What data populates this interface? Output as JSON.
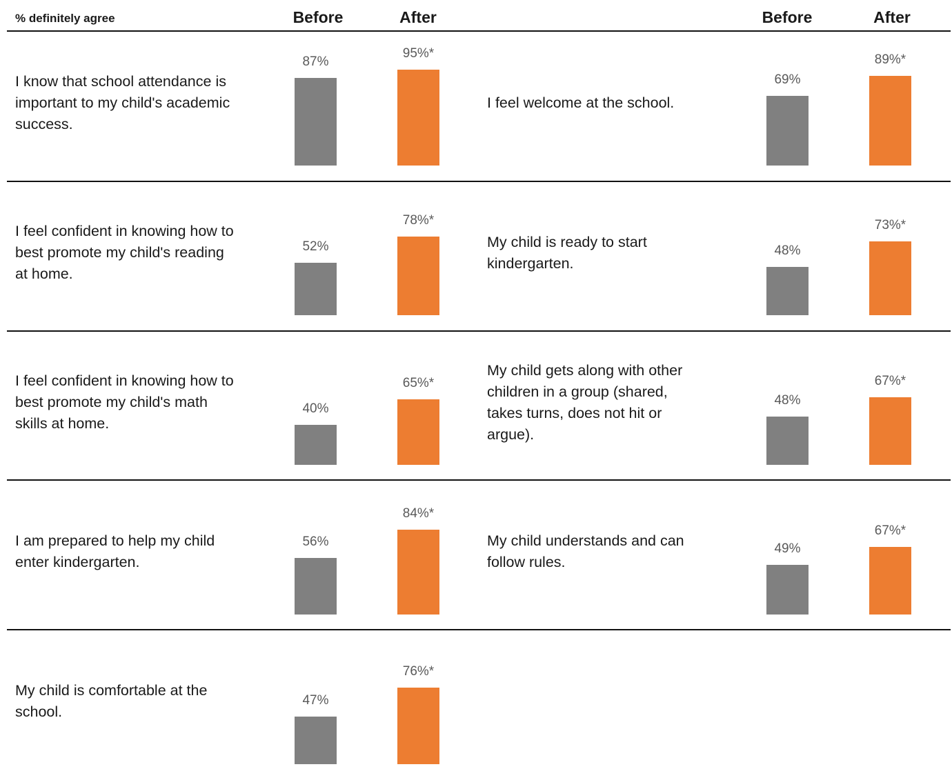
{
  "header": {
    "metric_label": "% definitely agree",
    "before_label": "Before",
    "after_label": "After"
  },
  "colors": {
    "before": "#808080",
    "after": "#ED7D31",
    "value_text": "#595959",
    "rule": "#111111"
  },
  "chart_data": {
    "type": "bar",
    "title": "% definitely agree",
    "categories": [
      "Before",
      "After"
    ],
    "significance_marker": "*",
    "panels": [
      {
        "statement": "I know that school attendance is important to my child's academic success.",
        "before": 87,
        "after": 95,
        "before_label": "87%",
        "after_label": "95%*"
      },
      {
        "statement": "I feel welcome at the school.",
        "before": 69,
        "after": 89,
        "before_label": "69%",
        "after_label": "89%*"
      },
      {
        "statement": "I feel confident in knowing how to best promote my child's reading at home.",
        "before": 52,
        "after": 78,
        "before_label": "52%",
        "after_label": "78%*"
      },
      {
        "statement": "My child is ready to start kindergarten.",
        "before": 48,
        "after": 73,
        "before_label": "48%",
        "after_label": "73%*"
      },
      {
        "statement": "I feel confident in knowing how to best promote my child's math skills at home.",
        "before": 40,
        "after": 65,
        "before_label": "40%",
        "after_label": "65%*"
      },
      {
        "statement": "My child gets along with other children in a group (shared, takes turns, does not hit or argue).",
        "before": 48,
        "after": 67,
        "before_label": "48%",
        "after_label": "67%*"
      },
      {
        "statement": "I am prepared to help my child enter kindergarten.",
        "before": 56,
        "after": 84,
        "before_label": "56%",
        "after_label": "84%*"
      },
      {
        "statement": "My child understands and can follow rules.",
        "before": 49,
        "after": 67,
        "before_label": "49%",
        "after_label": "67%*"
      },
      {
        "statement": "My child is comfortable at the school.",
        "before": 47,
        "after": 76,
        "before_label": "47%",
        "after_label": "76%*"
      }
    ]
  }
}
